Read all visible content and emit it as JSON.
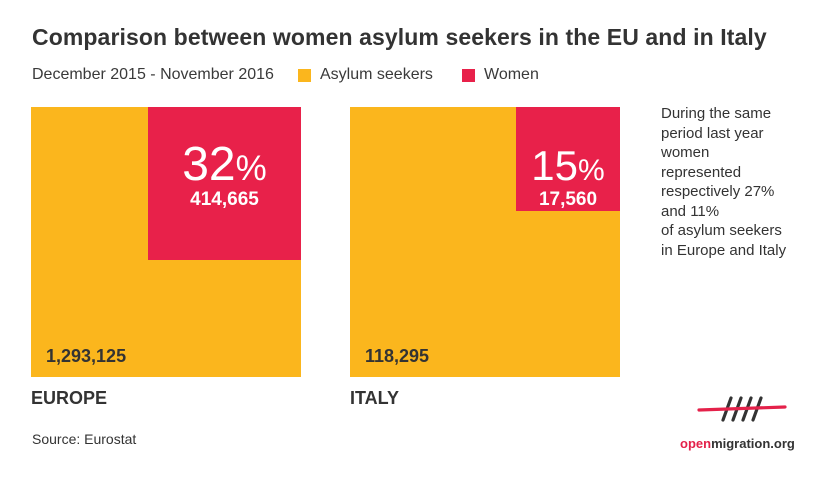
{
  "title": "Comparison between women asylum seekers in the EU and in Italy",
  "period": "December 2015 - November 2016",
  "legend": [
    {
      "label": "Asylum seekers",
      "color": "#fbb61d"
    },
    {
      "label": "Women",
      "color": "#e8214a"
    }
  ],
  "chart_data": {
    "type": "area",
    "title": "Comparison between women asylum seekers in the EU and in Italy",
    "subtitle": "December 2015 - November 2016",
    "series": [
      {
        "name": "Asylum seekers",
        "color": "#fbb61d"
      },
      {
        "name": "Women",
        "color": "#e8214a"
      }
    ],
    "panels": [
      {
        "region": "EUROPE",
        "total": 1293125,
        "total_label": "1,293,125",
        "women": 414665,
        "women_label": "414,665",
        "women_share": 0.32,
        "pct_number": "32",
        "pct_sign": "%"
      },
      {
        "region": "ITALY",
        "total": 118295,
        "total_label": "118,295",
        "women": 17560,
        "women_label": "17,560",
        "women_share": 0.15,
        "pct_number": "15",
        "pct_sign": "%"
      }
    ]
  },
  "note_lines": [
    "During the same",
    "period last year",
    "women",
    "represented",
    "respectively 27%",
    "and 11%",
    "of asylum seekers",
    "in Europe and Italy"
  ],
  "source": "Source: Eurostat",
  "logo": {
    "part1": "open",
    "part2": "migration.org",
    "mark": "openmigration-mark-icon"
  }
}
